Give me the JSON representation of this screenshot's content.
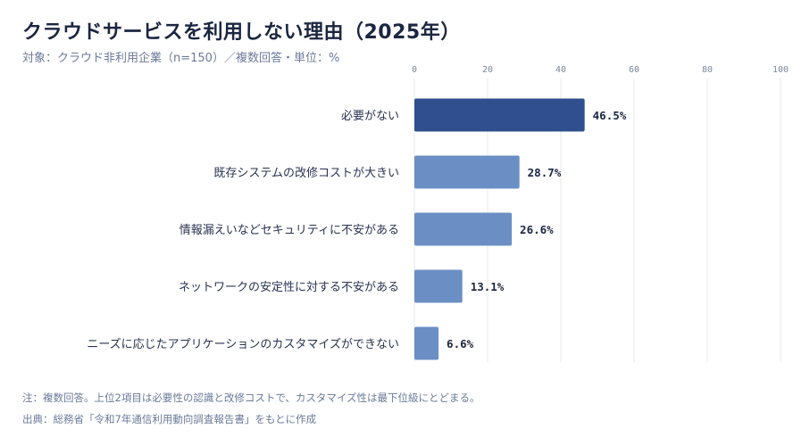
{
  "title": "クラウドサービスを利用しない理由（2025年）",
  "subtitle": "対象：クラウド非利用企業（n=150）／複数回答・単位：%",
  "notes": {
    "note1": "注：複数回答。上位2項目は必要性の認識と改修コストで、カスタマイズ性は最下位級にとどまる。",
    "source": "出典：総務省「令和7年通信利用動向調査報告書」をもとに作成"
  },
  "colors": {
    "highlight": "#2f4f8f",
    "bar": "#6b8fc4",
    "grid": "#e6e9f0"
  },
  "chart_data": {
    "type": "bar",
    "orientation": "horizontal",
    "categories": [
      "必要がない",
      "既存システムの改修コストが大きい",
      "情報漏えいなどセキュリティに不安がある",
      "ネットワークの安定性に対する不安がある",
      "ニーズに応じたアプリケーションのカスタマイズができない"
    ],
    "values": [
      46.5,
      28.7,
      26.6,
      13.1,
      6.6
    ],
    "value_labels": [
      "46.5%",
      "28.7%",
      "26.6%",
      "13.1%",
      "6.6%"
    ],
    "highlight_index": 0,
    "xlim": [
      0,
      100
    ],
    "xticks": [
      0,
      20,
      40,
      60,
      80,
      100
    ],
    "grid": true,
    "legend": "none"
  }
}
